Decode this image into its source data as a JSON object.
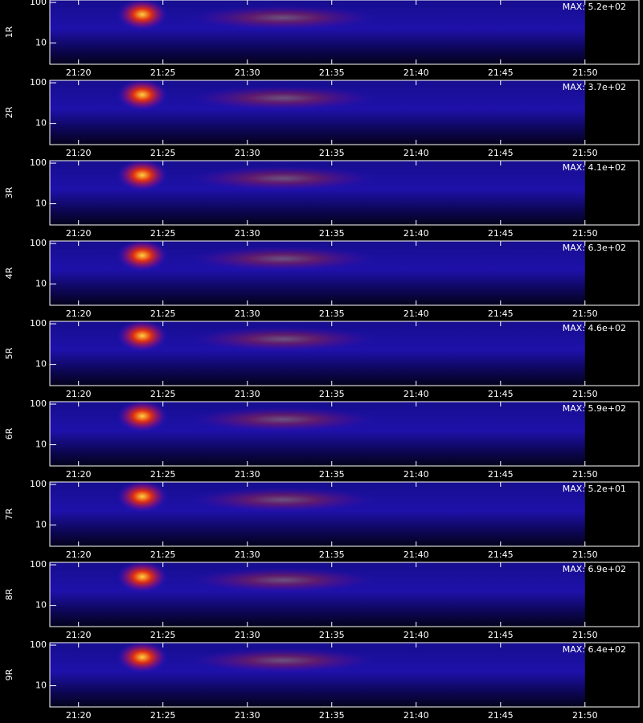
{
  "chart_data": [
    {
      "type": "spectrogram",
      "ylabel": "1R",
      "annotation": "MAX: 5.2e+02",
      "log_y": true,
      "xlim": [
        1278.3,
        1313.2
      ],
      "xticks": [
        {
          "value": 1280,
          "label": "21:20"
        },
        {
          "value": 1285,
          "label": "21:25"
        },
        {
          "value": 1290,
          "label": "21:30"
        },
        {
          "value": 1295,
          "label": "21:35"
        },
        {
          "value": 1300,
          "label": "21:40"
        },
        {
          "value": 1305,
          "label": "21:45"
        },
        {
          "value": 1310,
          "label": "21:50"
        }
      ],
      "ylim": [
        3,
        115
      ],
      "yticks": [
        10,
        100
      ]
    },
    {
      "type": "spectrogram",
      "ylabel": "2R",
      "annotation": "MAX: 3.7e+02",
      "log_y": true,
      "xlim": [
        1278.3,
        1313.2
      ],
      "xticks": [
        {
          "value": 1280,
          "label": "21:20"
        },
        {
          "value": 1285,
          "label": "21:25"
        },
        {
          "value": 1290,
          "label": "21:30"
        },
        {
          "value": 1295,
          "label": "21:35"
        },
        {
          "value": 1300,
          "label": "21:40"
        },
        {
          "value": 1305,
          "label": "21:45"
        },
        {
          "value": 1310,
          "label": "21:50"
        }
      ],
      "ylim": [
        3,
        115
      ],
      "yticks": [
        10,
        100
      ]
    },
    {
      "type": "spectrogram",
      "ylabel": "3R",
      "annotation": "MAX: 4.1e+02",
      "log_y": true,
      "xlim": [
        1278.3,
        1313.2
      ],
      "xticks": [
        {
          "value": 1280,
          "label": "21:20"
        },
        {
          "value": 1285,
          "label": "21:25"
        },
        {
          "value": 1290,
          "label": "21:30"
        },
        {
          "value": 1295,
          "label": "21:35"
        },
        {
          "value": 1300,
          "label": "21:40"
        },
        {
          "value": 1305,
          "label": "21:45"
        },
        {
          "value": 1310,
          "label": "21:50"
        }
      ],
      "ylim": [
        3,
        115
      ],
      "yticks": [
        10,
        100
      ]
    },
    {
      "type": "spectrogram",
      "ylabel": "4R",
      "annotation": "MAX: 6.3e+02",
      "log_y": true,
      "xlim": [
        1278.3,
        1313.2
      ],
      "xticks": [
        {
          "value": 1280,
          "label": "21:20"
        },
        {
          "value": 1285,
          "label": "21:25"
        },
        {
          "value": 1290,
          "label": "21:30"
        },
        {
          "value": 1295,
          "label": "21:35"
        },
        {
          "value": 1300,
          "label": "21:40"
        },
        {
          "value": 1305,
          "label": "21:45"
        },
        {
          "value": 1310,
          "label": "21:50"
        }
      ],
      "ylim": [
        3,
        115
      ],
      "yticks": [
        10,
        100
      ]
    },
    {
      "type": "spectrogram",
      "ylabel": "5R",
      "annotation": "MAX: 4.6e+02",
      "log_y": true,
      "xlim": [
        1278.3,
        1313.2
      ],
      "xticks": [
        {
          "value": 1280,
          "label": "21:20"
        },
        {
          "value": 1285,
          "label": "21:25"
        },
        {
          "value": 1290,
          "label": "21:30"
        },
        {
          "value": 1295,
          "label": "21:35"
        },
        {
          "value": 1300,
          "label": "21:40"
        },
        {
          "value": 1305,
          "label": "21:45"
        },
        {
          "value": 1310,
          "label": "21:50"
        }
      ],
      "ylim": [
        3,
        115
      ],
      "yticks": [
        10,
        100
      ]
    },
    {
      "type": "spectrogram",
      "ylabel": "6R",
      "annotation": "MAX: 5.9e+02",
      "log_y": true,
      "xlim": [
        1278.3,
        1313.2
      ],
      "xticks": [
        {
          "value": 1280,
          "label": "21:20"
        },
        {
          "value": 1285,
          "label": "21:25"
        },
        {
          "value": 1290,
          "label": "21:30"
        },
        {
          "value": 1295,
          "label": "21:35"
        },
        {
          "value": 1300,
          "label": "21:40"
        },
        {
          "value": 1305,
          "label": "21:45"
        },
        {
          "value": 1310,
          "label": "21:50"
        }
      ],
      "ylim": [
        3,
        115
      ],
      "yticks": [
        10,
        100
      ]
    },
    {
      "type": "spectrogram",
      "ylabel": "7R",
      "annotation": "MAX: 5.2e+01",
      "log_y": true,
      "xlim": [
        1278.3,
        1313.2
      ],
      "xticks": [
        {
          "value": 1280,
          "label": "21:20"
        },
        {
          "value": 1285,
          "label": "21:25"
        },
        {
          "value": 1290,
          "label": "21:30"
        },
        {
          "value": 1295,
          "label": "21:35"
        },
        {
          "value": 1300,
          "label": "21:40"
        },
        {
          "value": 1305,
          "label": "21:45"
        },
        {
          "value": 1310,
          "label": "21:50"
        }
      ],
      "ylim": [
        3,
        115
      ],
      "yticks": [
        10,
        100
      ]
    },
    {
      "type": "spectrogram",
      "ylabel": "8R",
      "annotation": "MAX: 6.9e+02",
      "log_y": true,
      "xlim": [
        1278.3,
        1313.2
      ],
      "xticks": [
        {
          "value": 1280,
          "label": "21:20"
        },
        {
          "value": 1285,
          "label": "21:25"
        },
        {
          "value": 1290,
          "label": "21:30"
        },
        {
          "value": 1295,
          "label": "21:35"
        },
        {
          "value": 1300,
          "label": "21:40"
        },
        {
          "value": 1305,
          "label": "21:45"
        },
        {
          "value": 1310,
          "label": "21:50"
        }
      ],
      "ylim": [
        3,
        115
      ],
      "yticks": [
        10,
        100
      ]
    },
    {
      "type": "spectrogram",
      "ylabel": "9R",
      "annotation": "MAX: 6.4e+02",
      "log_y": true,
      "xlim": [
        1278.3,
        1313.2
      ],
      "xticks": [
        {
          "value": 1280,
          "label": "21:20"
        },
        {
          "value": 1285,
          "label": "21:25"
        },
        {
          "value": 1290,
          "label": "21:30"
        },
        {
          "value": 1295,
          "label": "21:35"
        },
        {
          "value": 1300,
          "label": "21:40"
        },
        {
          "value": 1305,
          "label": "21:45"
        },
        {
          "value": 1310,
          "label": "21:50"
        }
      ],
      "ylim": [
        3,
        115
      ],
      "yticks": [
        10,
        100
      ]
    }
  ]
}
